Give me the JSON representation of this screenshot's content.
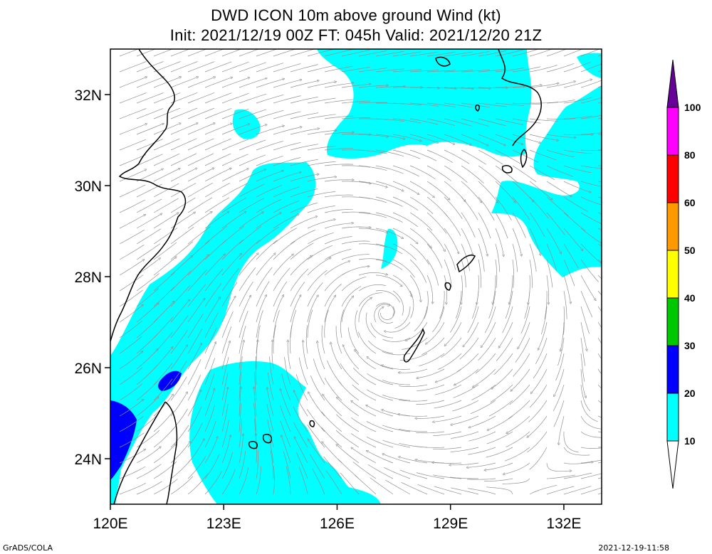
{
  "title": {
    "line1": "DWD ICON 10m above ground Wind (kt)",
    "line2": "Init: 2021/12/19 00Z  FT: 045h  Valid: 2021/12/20 21Z"
  },
  "map": {
    "lon_range": [
      120,
      133
    ],
    "lat_range": [
      23,
      33
    ],
    "x_ticks": [
      {
        "lon": 120,
        "label": "120E"
      },
      {
        "lon": 123,
        "label": "123E"
      },
      {
        "lon": 126,
        "label": "126E"
      },
      {
        "lon": 129,
        "label": "129E"
      },
      {
        "lon": 132,
        "label": "132E"
      }
    ],
    "y_ticks": [
      {
        "lat": 24,
        "label": "24N"
      },
      {
        "lat": 26,
        "label": "26N"
      },
      {
        "lat": 28,
        "label": "28N"
      },
      {
        "lat": 30,
        "label": "30N"
      },
      {
        "lat": 32,
        "label": "32N"
      }
    ],
    "low_center": {
      "lon": 127.3,
      "lat": 27.2
    }
  },
  "colorbar": {
    "levels": [
      {
        "label": "10",
        "color": "#00ffff"
      },
      {
        "label": "20",
        "color": "#0000ff"
      },
      {
        "label": "30",
        "color": "#00c800"
      },
      {
        "label": "40",
        "color": "#ffff00"
      },
      {
        "label": "50",
        "color": "#ff9900"
      },
      {
        "label": "60",
        "color": "#ff0000"
      },
      {
        "label": "80",
        "color": "#ff00ff"
      },
      {
        "label": "100",
        "color": "#660099"
      }
    ]
  },
  "colors": {
    "fill_10_20": "#00ffff",
    "fill_20_30": "#0000ff",
    "streamline": "#909090",
    "coast": "#000000"
  },
  "footer": {
    "left": "GrADS/COLA",
    "right": "2021-12-19-11:58"
  }
}
